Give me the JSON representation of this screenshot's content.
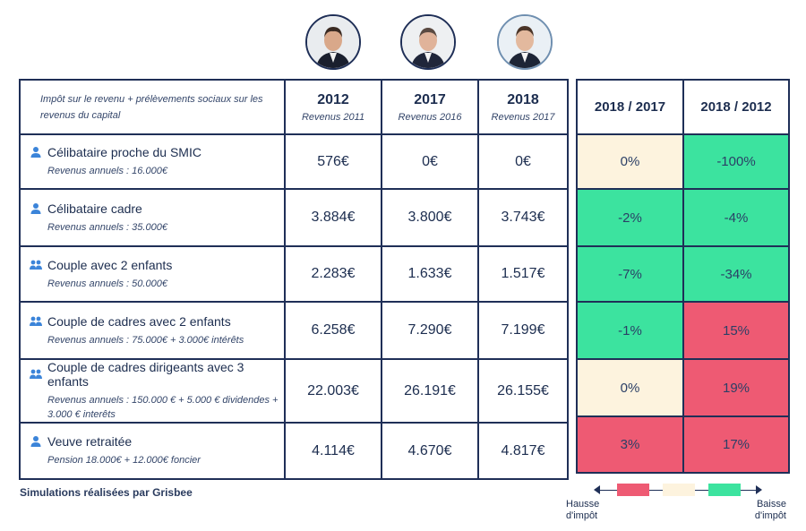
{
  "header": {
    "description": "Impôt sur le revenu + prélèvements sociaux sur les revenus du capital",
    "years": [
      {
        "year": "2012",
        "sub": "Revenus 2011"
      },
      {
        "year": "2017",
        "sub": "Revenus 2016"
      },
      {
        "year": "2018",
        "sub": "Revenus 2017"
      }
    ],
    "comparisons": [
      "2018 / 2017",
      "2018 / 2012"
    ]
  },
  "colors": {
    "red": "#ee5a73",
    "cream": "#fdf3de",
    "green": "#3ce39f",
    "border": "#1f2f57",
    "icon": "#3b84d9"
  },
  "rows": [
    {
      "icon": "single-person-icon",
      "name": "Célibataire proche du SMIC",
      "desc": "Revenus annuels : 16.000€",
      "v2012": "576€",
      "v2017": "0€",
      "v2018": "0€",
      "p1": "0%",
      "p1c": "cream",
      "p2": "-100%",
      "p2c": "green"
    },
    {
      "icon": "single-person-icon",
      "name": "Célibataire cadre",
      "desc": "Revenus annuels : 35.000€",
      "v2012": "3.884€",
      "v2017": "3.800€",
      "v2018": "3.743€",
      "p1": "-2%",
      "p1c": "green",
      "p2": "-4%",
      "p2c": "green"
    },
    {
      "icon": "group-icon",
      "name": "Couple avec 2 enfants",
      "desc": "Revenus annuels : 50.000€",
      "v2012": "2.283€",
      "v2017": "1.633€",
      "v2018": "1.517€",
      "p1": "-7%",
      "p1c": "green",
      "p2": "-34%",
      "p2c": "green"
    },
    {
      "icon": "group-icon",
      "name": "Couple de cadres avec 2 enfants",
      "desc": "Revenus annuels : 75.000€ + 3.000€ intérêts",
      "v2012": "6.258€",
      "v2017": "7.290€",
      "v2018": "7.199€",
      "p1": "-1%",
      "p1c": "green",
      "p2": "15%",
      "p2c": "red"
    },
    {
      "icon": "group-icon",
      "name": "Couple de cadres dirigeants avec 3 enfants",
      "desc": "Revenus annuels  : 150.000 € + 5.000 € dividendes + 3.000 € interêts",
      "v2012": "22.003€",
      "v2017": "26.191€",
      "v2018": "26.155€",
      "p1": "0%",
      "p1c": "cream",
      "p2": "19%",
      "p2c": "red"
    },
    {
      "icon": "single-person-icon",
      "name": "Veuve retraitée",
      "desc": "Pension 18.000€ + 12.000€ foncier",
      "v2012": "4.114€",
      "v2017": "4.670€",
      "v2018": "4.817€",
      "p1": "3%",
      "p1c": "red",
      "p2": "17%",
      "p2c": "red"
    }
  ],
  "footer": "Simulations réalisées par Grisbee",
  "legend": {
    "left": "Hausse\nd'impôt",
    "right": "Baisse\nd'impôt"
  }
}
